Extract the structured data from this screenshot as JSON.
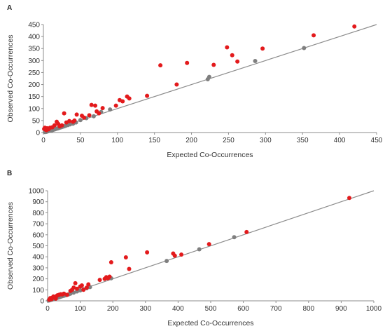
{
  "chart_data": [
    {
      "type": "scatter",
      "panel_label": "A",
      "xlabel": "Expected Co-Occurrences",
      "ylabel": "Observed Co-Occurrences",
      "xlim": [
        0,
        450
      ],
      "ylim": [
        0,
        450
      ],
      "xticks": [
        "0",
        "50",
        "100",
        "150",
        "200",
        "250",
        "300",
        "350",
        "400",
        "450"
      ],
      "yticks": [
        "0",
        "50",
        "100",
        "150",
        "200",
        "250",
        "300",
        "350",
        "400",
        "450"
      ],
      "reference_line": {
        "x": [
          0,
          450
        ],
        "y": [
          0,
          450
        ],
        "color": "#8c8c8c"
      },
      "grid": false,
      "series": [
        {
          "color": "#7f7f7f",
          "points": [
            [
              2,
              2
            ],
            [
              4,
              3
            ],
            [
              6,
              5
            ],
            [
              8,
              7
            ],
            [
              10,
              8
            ],
            [
              12,
              10
            ],
            [
              14,
              12
            ],
            [
              16,
              14
            ],
            [
              18,
              16
            ],
            [
              20,
              18
            ],
            [
              22,
              20
            ],
            [
              24,
              22
            ],
            [
              26,
              24
            ],
            [
              28,
              26
            ],
            [
              30,
              28
            ],
            [
              33,
              31
            ],
            [
              36,
              34
            ],
            [
              40,
              37
            ],
            [
              44,
              42
            ],
            [
              50,
              52
            ],
            [
              58,
              60
            ],
            [
              68,
              68
            ],
            [
              78,
              86
            ],
            [
              90,
              96
            ],
            [
              222,
              222
            ],
            [
              224,
              232
            ],
            [
              286,
              298
            ],
            [
              352,
              352
            ]
          ]
        },
        {
          "color": "#e31a1c",
          "points": [
            [
              1,
              15
            ],
            [
              2,
              20
            ],
            [
              3,
              12
            ],
            [
              4,
              10
            ],
            [
              5,
              18
            ],
            [
              7,
              14
            ],
            [
              9,
              20
            ],
            [
              12,
              22
            ],
            [
              15,
              30
            ],
            [
              18,
              45
            ],
            [
              20,
              36
            ],
            [
              22,
              26
            ],
            [
              25,
              30
            ],
            [
              28,
              80
            ],
            [
              31,
              42
            ],
            [
              35,
              48
            ],
            [
              40,
              45
            ],
            [
              42,
              50
            ],
            [
              45,
              75
            ],
            [
              52,
              70
            ],
            [
              55,
              62
            ],
            [
              62,
              72
            ],
            [
              65,
              115
            ],
            [
              70,
              112
            ],
            [
              72,
              88
            ],
            [
              75,
              80
            ],
            [
              80,
              102
            ],
            [
              98,
              112
            ],
            [
              103,
              135
            ],
            [
              107,
              130
            ],
            [
              113,
              150
            ],
            [
              116,
              142
            ],
            [
              140,
              153
            ],
            [
              158,
              280
            ],
            [
              180,
              200
            ],
            [
              194,
              290
            ],
            [
              230,
              282
            ],
            [
              248,
              355
            ],
            [
              255,
              322
            ],
            [
              262,
              296
            ],
            [
              296,
              350
            ],
            [
              365,
              405
            ],
            [
              420,
              442
            ]
          ]
        }
      ]
    },
    {
      "type": "scatter",
      "panel_label": "B",
      "xlabel": "Expected Co-Occurrences",
      "ylabel": "Observed Co-Occurrences",
      "xlim": [
        0,
        1000
      ],
      "ylim": [
        0,
        1000
      ],
      "xticks": [
        "0",
        "100",
        "200",
        "300",
        "400",
        "500",
        "600",
        "700",
        "800",
        "900",
        "1000"
      ],
      "yticks": [
        "0",
        "100",
        "200",
        "300",
        "400",
        "500",
        "600",
        "700",
        "800",
        "900",
        "1000"
      ],
      "reference_line": {
        "x": [
          0,
          1000
        ],
        "y": [
          0,
          1000
        ],
        "color": "#8c8c8c"
      },
      "grid": false,
      "series": [
        {
          "color": "#7f7f7f",
          "points": [
            [
              3,
              3
            ],
            [
              6,
              5
            ],
            [
              9,
              8
            ],
            [
              12,
              10
            ],
            [
              15,
              13
            ],
            [
              18,
              16
            ],
            [
              22,
              20
            ],
            [
              26,
              24
            ],
            [
              30,
              27
            ],
            [
              35,
              32
            ],
            [
              40,
              37
            ],
            [
              45,
              42
            ],
            [
              50,
              46
            ],
            [
              55,
              50
            ],
            [
              60,
              55
            ],
            [
              65,
              60
            ],
            [
              70,
              65
            ],
            [
              80,
              75
            ],
            [
              90,
              85
            ],
            [
              100,
              95
            ],
            [
              110,
              105
            ],
            [
              120,
              115
            ],
            [
              130,
              125
            ],
            [
              195,
              205
            ],
            [
              365,
              362
            ],
            [
              465,
              468
            ],
            [
              572,
              578
            ]
          ]
        },
        {
          "color": "#e31a1c",
          "points": [
            [
              5,
              10
            ],
            [
              8,
              25
            ],
            [
              12,
              15
            ],
            [
              15,
              30
            ],
            [
              18,
              40
            ],
            [
              22,
              35
            ],
            [
              25,
              20
            ],
            [
              28,
              45
            ],
            [
              30,
              50
            ],
            [
              35,
              55
            ],
            [
              40,
              60
            ],
            [
              45,
              58
            ],
            [
              50,
              65
            ],
            [
              60,
              55
            ],
            [
              70,
              90
            ],
            [
              75,
              100
            ],
            [
              80,
              120
            ],
            [
              85,
              160
            ],
            [
              90,
              110
            ],
            [
              100,
              130
            ],
            [
              105,
              140
            ],
            [
              110,
              100
            ],
            [
              120,
              120
            ],
            [
              125,
              150
            ],
            [
              160,
              190
            ],
            [
              175,
              200
            ],
            [
              180,
              215
            ],
            [
              185,
              205
            ],
            [
              190,
              220
            ],
            [
              195,
              350
            ],
            [
              240,
              395
            ],
            [
              250,
              290
            ],
            [
              305,
              440
            ],
            [
              385,
              430
            ],
            [
              390,
              410
            ],
            [
              410,
              420
            ],
            [
              495,
              515
            ],
            [
              610,
              625
            ],
            [
              925,
              935
            ]
          ]
        }
      ]
    }
  ]
}
